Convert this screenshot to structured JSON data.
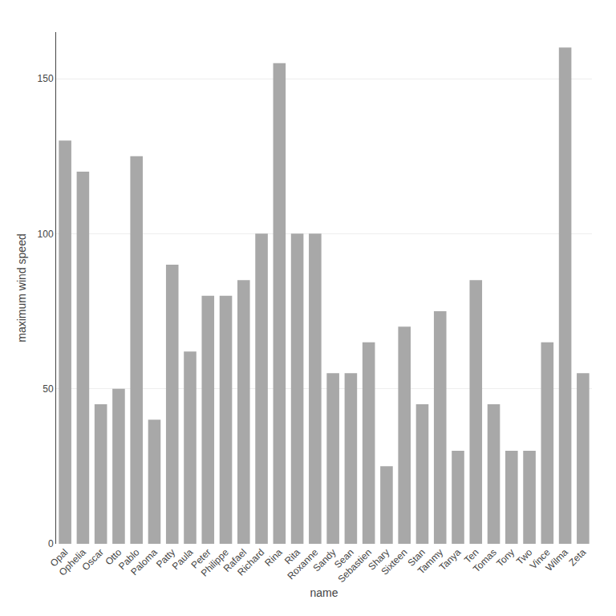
{
  "chart_data": {
    "type": "bar",
    "categories": [
      "Opal",
      "Ophelia",
      "Oscar",
      "Otto",
      "Pablo",
      "Paloma",
      "Patty",
      "Paula",
      "Peter",
      "Philippe",
      "Rafael",
      "Richard",
      "Rina",
      "Rita",
      "Roxanne",
      "Sandy",
      "Sean",
      "Sebastien",
      "Shary",
      "Sixteen",
      "Stan",
      "Tammy",
      "Tanya",
      "Ten",
      "Tomas",
      "Tony",
      "Two",
      "Vince",
      "Wilma",
      "Zeta"
    ],
    "values": [
      130,
      120,
      45,
      50,
      125,
      40,
      90,
      62,
      80,
      80,
      85,
      100,
      155,
      100,
      100,
      55,
      55,
      65,
      25,
      70,
      45,
      75,
      30,
      85,
      45,
      30,
      30,
      65,
      160,
      55
    ],
    "color": "#a8a8a8",
    "xlabel": "name",
    "ylabel": "maximum wind speed",
    "ylim": [
      0,
      165
    ],
    "yticks": [
      0,
      50,
      100,
      150
    ],
    "grid": true
  }
}
